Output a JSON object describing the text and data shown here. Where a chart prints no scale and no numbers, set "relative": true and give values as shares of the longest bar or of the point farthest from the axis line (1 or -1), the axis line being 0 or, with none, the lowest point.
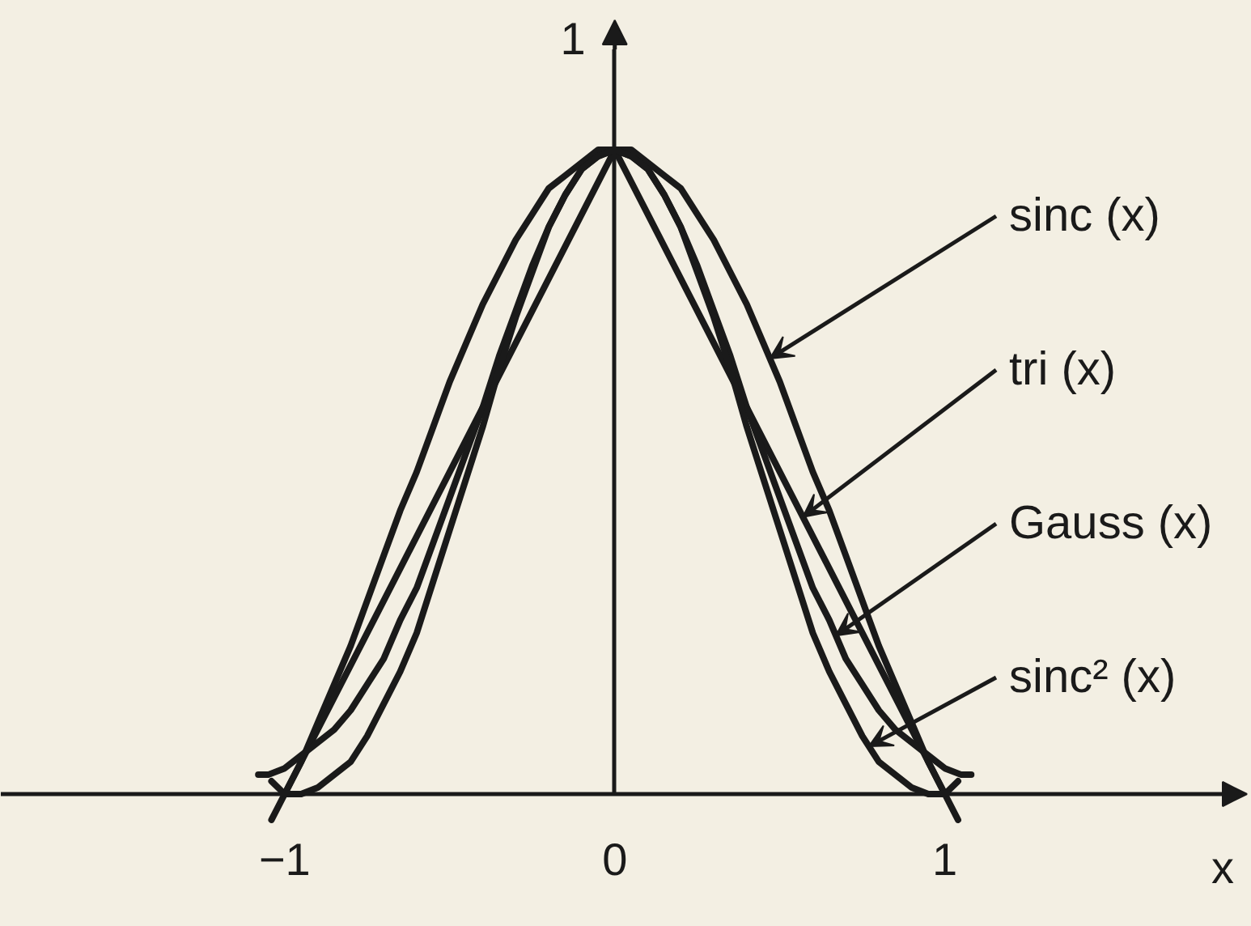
{
  "chart_data": {
    "type": "line",
    "relative": true,
    "xlabel": "x",
    "ylabel": "1",
    "xlim": [
      -1.86,
      1.93
    ],
    "xticks": [
      {
        "value": -1,
        "label": "−1"
      },
      0,
      1
    ],
    "series": [
      {
        "name": "sinc (x)",
        "color": "#1a1a1a",
        "x": [
          -1.04,
          -1,
          -0.95,
          -0.9,
          -0.85,
          -0.8,
          -0.75,
          -0.7,
          -0.65,
          -0.6,
          -0.55,
          -0.5,
          -0.45,
          -0.4,
          -0.35,
          -0.3,
          -0.25,
          -0.2,
          -0.15,
          -0.1,
          -0.05,
          0,
          0.05,
          0.1,
          0.15,
          0.2,
          0.25,
          0.3,
          0.35,
          0.4,
          0.45,
          0.5,
          0.55,
          0.6,
          0.65,
          0.7,
          0.75,
          0.8,
          0.85,
          0.9,
          0.95,
          1,
          1.04
        ],
        "values": [
          -0.04,
          0.0,
          0.05,
          0.11,
          0.17,
          0.23,
          0.3,
          0.37,
          0.44,
          0.5,
          0.57,
          0.64,
          0.7,
          0.76,
          0.81,
          0.86,
          0.9,
          0.94,
          0.96,
          0.98,
          1.0,
          1.0,
          1.0,
          0.98,
          0.96,
          0.94,
          0.9,
          0.86,
          0.81,
          0.76,
          0.7,
          0.64,
          0.57,
          0.5,
          0.44,
          0.37,
          0.3,
          0.23,
          0.17,
          0.11,
          0.05,
          0.0,
          -0.04
        ]
      },
      {
        "name": "tri (x)",
        "color": "#1a1a1a",
        "x": [
          -1,
          0,
          1
        ],
        "values": [
          0,
          1,
          0
        ]
      },
      {
        "name": "Gauss (x)",
        "color": "#1a1a1a",
        "x": [
          -1.08,
          -1.05,
          -1,
          -0.95,
          -0.9,
          -0.85,
          -0.8,
          -0.75,
          -0.7,
          -0.65,
          -0.6,
          -0.55,
          -0.5,
          -0.45,
          -0.4,
          -0.35,
          -0.3,
          -0.25,
          -0.2,
          -0.15,
          -0.1,
          -0.05,
          0,
          0.05,
          0.1,
          0.15,
          0.2,
          0.25,
          0.3,
          0.35,
          0.4,
          0.45,
          0.5,
          0.55,
          0.6,
          0.65,
          0.7,
          0.75,
          0.8,
          0.85,
          0.9,
          0.95,
          1,
          1.05,
          1.08
        ],
        "values": [
          0.03,
          0.03,
          0.04,
          0.06,
          0.08,
          0.1,
          0.13,
          0.17,
          0.21,
          0.27,
          0.32,
          0.39,
          0.46,
          0.53,
          0.6,
          0.68,
          0.75,
          0.82,
          0.88,
          0.93,
          0.97,
          0.99,
          1.0,
          0.99,
          0.97,
          0.93,
          0.88,
          0.82,
          0.75,
          0.68,
          0.6,
          0.53,
          0.46,
          0.39,
          0.32,
          0.27,
          0.21,
          0.17,
          0.13,
          0.1,
          0.08,
          0.06,
          0.04,
          0.03,
          0.03
        ]
      },
      {
        "name": "sinc² (x)",
        "color": "#1a1a1a",
        "x": [
          -1.04,
          -1,
          -0.95,
          -0.9,
          -0.85,
          -0.8,
          -0.75,
          -0.7,
          -0.65,
          -0.6,
          -0.55,
          -0.5,
          -0.45,
          -0.4,
          -0.35,
          -0.3,
          -0.25,
          -0.2,
          -0.15,
          -0.1,
          -0.05,
          0,
          0.05,
          0.1,
          0.15,
          0.2,
          0.25,
          0.3,
          0.35,
          0.4,
          0.45,
          0.5,
          0.55,
          0.6,
          0.65,
          0.7,
          0.75,
          0.8,
          0.85,
          0.9,
          0.95,
          1,
          1.04
        ],
        "values": [
          0.02,
          0.0,
          0.0,
          0.01,
          0.03,
          0.05,
          0.09,
          0.14,
          0.19,
          0.25,
          0.33,
          0.41,
          0.49,
          0.57,
          0.66,
          0.74,
          0.81,
          0.88,
          0.93,
          0.97,
          0.99,
          1.0,
          0.99,
          0.97,
          0.93,
          0.88,
          0.81,
          0.74,
          0.66,
          0.57,
          0.49,
          0.41,
          0.33,
          0.25,
          0.19,
          0.14,
          0.09,
          0.05,
          0.03,
          0.01,
          0.0,
          0.0,
          0.02
        ]
      }
    ]
  }
}
